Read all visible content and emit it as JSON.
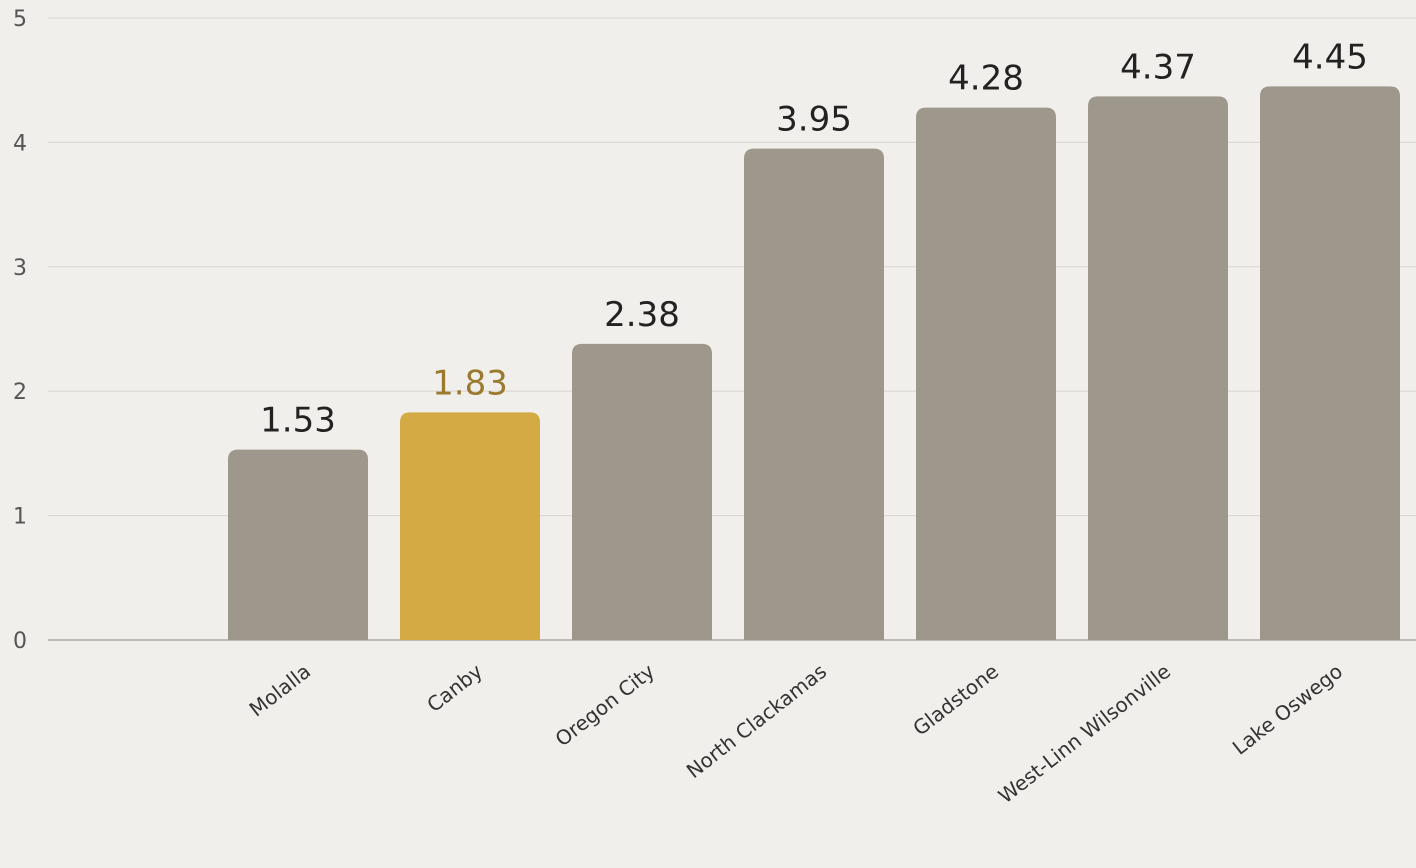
{
  "chart_data": {
    "type": "bar",
    "title": "",
    "xlabel": "",
    "ylabel": "",
    "categories": [
      "Molalla",
      "Canby",
      "Oregon City",
      "North Clackamas",
      "Gladstone",
      "West-Linn Wilsonville",
      "Lake Oswego"
    ],
    "values": [
      1.53,
      1.83,
      2.38,
      3.95,
      4.28,
      4.37,
      4.45
    ],
    "value_labels": [
      "1.53",
      "1.83",
      "2.38",
      "3.95",
      "4.28",
      "4.37",
      "4.45"
    ],
    "highlight_index": 1,
    "ylim": [
      0,
      5
    ],
    "yticks": [
      0,
      1,
      2,
      3,
      4,
      5
    ],
    "ytick_labels": [
      "0",
      "1",
      "2",
      "3",
      "4",
      "5"
    ],
    "grid": true,
    "legend": "none",
    "colors": {
      "bar": "#9e978c",
      "highlight_bar": "#d4aa45",
      "highlight_label": "#9a7a2e",
      "value_label": "#222222",
      "grid": "#dcd9d4",
      "axis": "#bdb9b3",
      "background": "#f1efec"
    }
  }
}
